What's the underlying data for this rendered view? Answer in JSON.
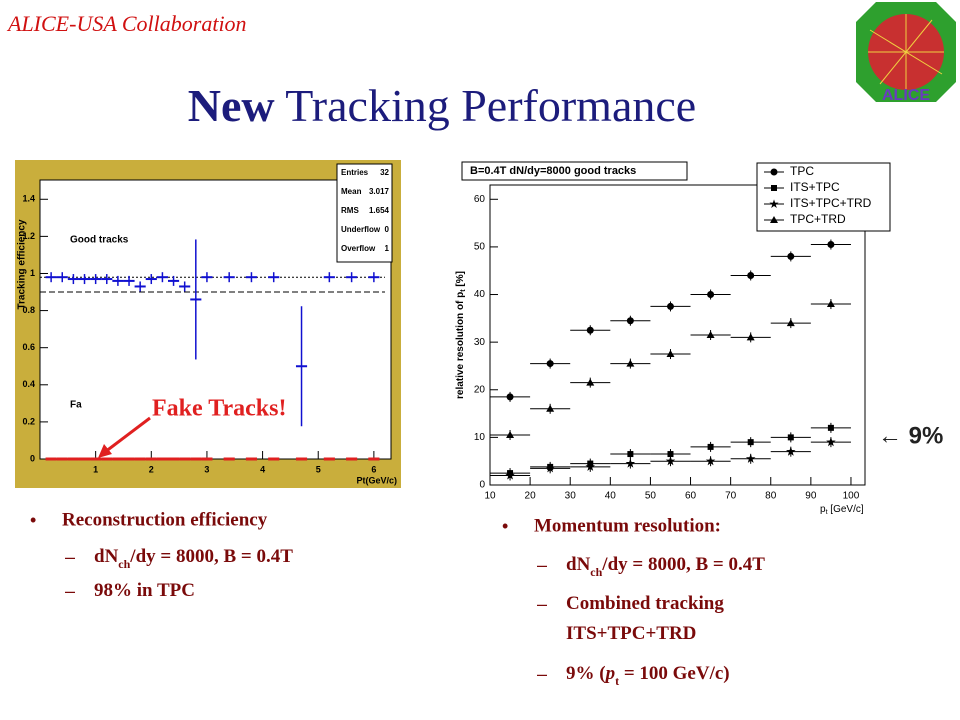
{
  "header": {
    "org": "ALICE-USA Collaboration",
    "logo_text": "ALICE",
    "title": [
      {
        "text": "New",
        "bold": true
      },
      {
        "text": " Tracking Performance"
      }
    ]
  },
  "left_bullets": {
    "main": "Reconstruction efficiency",
    "items": [
      [
        {
          "text": "dN"
        },
        {
          "text": "ch",
          "sub": true
        },
        {
          "text": "/dy = 8000, B = 0.4T"
        }
      ],
      [
        {
          "text": "98% in TPC"
        }
      ]
    ]
  },
  "right_bullets": {
    "main": "Momentum resolution:",
    "items": [
      [
        {
          "text": "dN"
        },
        {
          "text": "ch",
          "sub": true
        },
        {
          "text": "/dy = 8000, B = 0.4T"
        }
      ],
      [
        {
          "text": "Combined tracking"
        }
      ],
      [
        {
          "text": "ITS+TPC+TRD"
        }
      ],
      [
        {
          "text": "9% ("
        },
        {
          "text": "p",
          "italic": true
        },
        {
          "text": "t",
          "sub": true
        },
        {
          "text": " = 100 GeV/c)"
        }
      ]
    ]
  },
  "chart_data": [
    {
      "type": "errorbar",
      "ylabel": "Tracking efficiency",
      "xlabel": "Pt(GeV/c)",
      "annotations": [
        "Good tracks",
        "Fa"
      ],
      "callout": "Fake Tracks!",
      "stats": [
        {
          "label": "Entries",
          "value": 32
        },
        {
          "label": "Mean",
          "value": 3.017
        },
        {
          "label": "RMS",
          "value": 1.654
        },
        {
          "label": "Underflow",
          "value": 0
        },
        {
          "label": "Overflow",
          "value": 1
        }
      ],
      "hlines": [
        0.98,
        0.9
      ],
      "x": [
        0.2,
        0.4,
        0.6,
        0.8,
        1.0,
        1.2,
        1.4,
        1.6,
        1.8,
        2.0,
        2.2,
        2.4,
        2.6,
        2.8,
        3.0,
        3.4,
        3.8,
        4.2,
        4.7,
        5.2,
        5.6,
        6.0
      ],
      "series": [
        {
          "color": "#1010d0",
          "values": [
            0.98,
            0.98,
            0.97,
            0.97,
            0.97,
            0.97,
            0.96,
            0.96,
            0.93,
            0.97,
            0.98,
            0.96,
            0.93,
            0.86,
            0.98,
            0.98,
            0.98,
            0.98,
            0.5,
            0.98,
            0.98,
            0.98
          ]
        },
        {
          "color": "#e02020",
          "values": [
            0,
            0,
            0,
            0,
            0,
            0,
            0,
            0,
            0,
            0,
            0,
            0,
            0,
            0,
            0,
            0,
            0,
            0,
            0,
            0,
            0,
            0
          ]
        }
      ],
      "xlim": [
        0,
        6.2
      ],
      "ylim": [
        0,
        1.45
      ],
      "xticks": [
        1,
        2,
        3,
        4,
        5,
        6
      ],
      "yticks": [
        0,
        0.2,
        0.4,
        0.6,
        0.8,
        1,
        1.2,
        1.4
      ]
    },
    {
      "type": "errorbar",
      "title": "B=0.4T  dN/dy=8000  good tracks",
      "ylabel": [
        {
          "text": "relative resolution of p"
        },
        {
          "text": "t",
          "sub": true
        },
        {
          "text": " [%]"
        }
      ],
      "xlabel": [
        {
          "text": "p"
        },
        {
          "text": "t",
          "sub": true
        },
        {
          "text": " [GeV/c]"
        }
      ],
      "annotation": "← 9%",
      "x": [
        15,
        25,
        35,
        45,
        55,
        65,
        75,
        85,
        95
      ],
      "series": [
        {
          "name": "TPC",
          "marker": "circle",
          "color": "#000000",
          "values": [
            18.5,
            25.5,
            32.5,
            34.5,
            37.5,
            40,
            44,
            48,
            50.5
          ]
        },
        {
          "name": "ITS+TPC",
          "marker": "square",
          "color": "#000000",
          "values": [
            2.5,
            3.8,
            4.5,
            6.5,
            6.5,
            8,
            9,
            10,
            12
          ]
        },
        {
          "name": "ITS+TPC+TRD",
          "marker": "star",
          "color": "#000000",
          "values": [
            2,
            3.5,
            3.8,
            4.5,
            5,
            5,
            5.5,
            7,
            9
          ]
        },
        {
          "name": "TPC+TRD",
          "marker": "triangle",
          "color": "#000000",
          "values": [
            10.5,
            16,
            21.5,
            25.5,
            27.5,
            31.5,
            31,
            34,
            38
          ]
        }
      ],
      "xlim": [
        10,
        103.5
      ],
      "ylim": [
        0,
        63
      ],
      "xticks": [
        10,
        20,
        30,
        40,
        50,
        60,
        70,
        80,
        90,
        100
      ],
      "yticks": [
        0,
        10,
        20,
        30,
        40,
        50,
        60
      ]
    }
  ]
}
